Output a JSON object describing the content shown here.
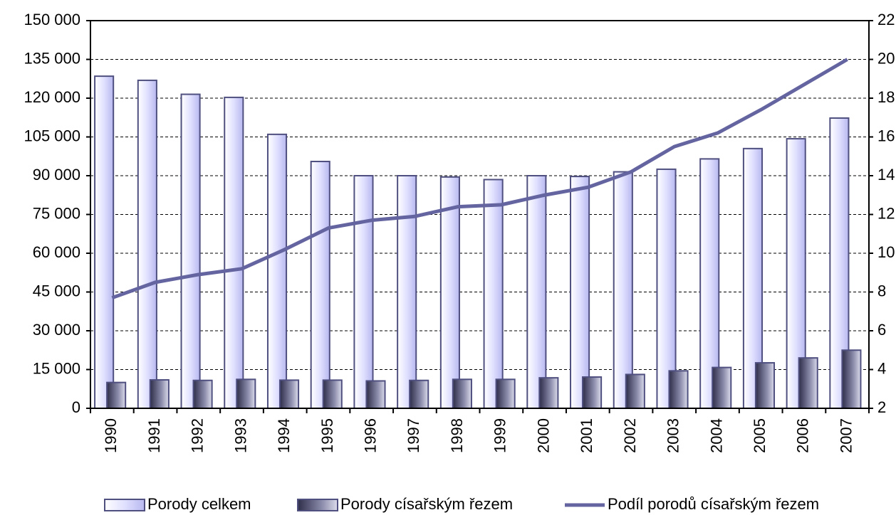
{
  "chart_data": {
    "type": "bar",
    "categories": [
      "1990",
      "1991",
      "1992",
      "1993",
      "1994",
      "1995",
      "1996",
      "1997",
      "1998",
      "1999",
      "2000",
      "2001",
      "2002",
      "2003",
      "2004",
      "2005",
      "2006",
      "2007"
    ],
    "series": [
      {
        "name": "Porody celkem",
        "type": "bar",
        "color": "#e0e0ff",
        "values": [
          128500,
          126900,
          121500,
          120300,
          106000,
          95500,
          90000,
          90000,
          89500,
          88500,
          90000,
          89700,
          91500,
          92500,
          96500,
          100500,
          104300,
          112300
        ]
      },
      {
        "name": "Porody císařským řezem",
        "type": "bar",
        "color": "#6b6b8f",
        "values": [
          10000,
          11000,
          10800,
          11200,
          10900,
          10900,
          10600,
          10800,
          11200,
          11200,
          11800,
          12100,
          13100,
          14500,
          15800,
          17600,
          19500,
          22500
        ]
      },
      {
        "name": "Podíl porodů císařským řezem",
        "type": "line",
        "axis": "y2",
        "color": "#6464a0",
        "values": [
          7.7,
          8.5,
          8.9,
          9.2,
          10.2,
          11.3,
          11.7,
          11.9,
          12.4,
          12.5,
          13.0,
          13.4,
          14.2,
          15.5,
          16.2,
          17.4,
          18.7,
          20.0
        ]
      }
    ],
    "ylim": [
      0,
      150000
    ],
    "yticks": [
      {
        "value": 0,
        "label": "0"
      },
      {
        "value": 15000,
        "label": "15 000"
      },
      {
        "value": 30000,
        "label": "30 000"
      },
      {
        "value": 45000,
        "label": "45 000"
      },
      {
        "value": 60000,
        "label": "60 000"
      },
      {
        "value": 75000,
        "label": "75 000"
      },
      {
        "value": 90000,
        "label": "90 000"
      },
      {
        "value": 105000,
        "label": "105 000"
      },
      {
        "value": 120000,
        "label": "120 000"
      },
      {
        "value": 135000,
        "label": "135 000"
      },
      {
        "value": 150000,
        "label": "150 000"
      }
    ],
    "y2lim": [
      2,
      22
    ],
    "y2ticks": [
      2,
      4,
      6,
      8,
      10,
      12,
      14,
      16,
      18,
      20,
      22
    ],
    "grid": true,
    "legend": "bottom"
  }
}
